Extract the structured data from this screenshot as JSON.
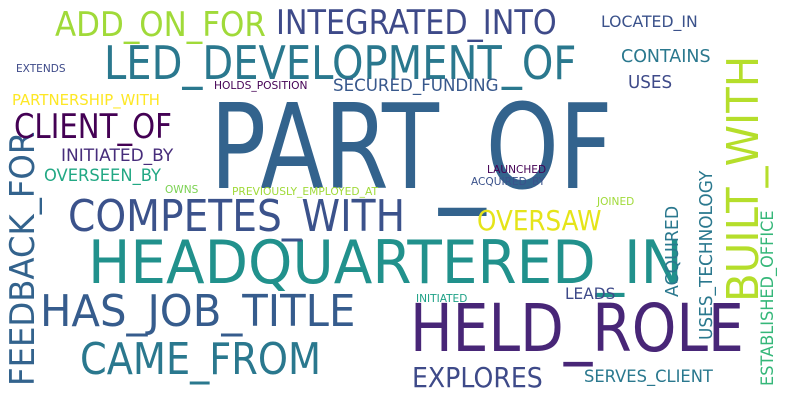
{
  "words": [
    {
      "text": "PART_OF",
      "color": "#33638d"
    },
    {
      "text": "HEADQUARTERED_IN",
      "color": "#21918c"
    },
    {
      "text": "LED_DEVELOPMENT_OF",
      "color": "#2a788e"
    },
    {
      "text": "HELD_ROLE",
      "color": "#482677"
    },
    {
      "text": "COMPETES_WITH",
      "color": "#3b528b"
    },
    {
      "text": "HAS_JOB_TITLE",
      "color": "#365c8d"
    },
    {
      "text": "CAME_FROM",
      "color": "#2a788e"
    },
    {
      "text": "INTEGRATED_INTO",
      "color": "#3e4a89"
    },
    {
      "text": "ADD_ON_FOR",
      "color": "#a0da39"
    },
    {
      "text": "BUILT_WITH",
      "color": "#b5de2b"
    },
    {
      "text": "FEEDBACK_FOR",
      "color": "#33638d"
    },
    {
      "text": "CLIENT_OF",
      "color": "#440154"
    },
    {
      "text": "OVERSAW",
      "color": "#e5e419"
    },
    {
      "text": "EXPLORES",
      "color": "#3e4a89"
    },
    {
      "text": "SECURED_FUNDING",
      "color": "#38588c"
    },
    {
      "text": "INITIATED_BY",
      "color": "#472d7b"
    },
    {
      "text": "OVERSEEN_BY",
      "color": "#22a884"
    },
    {
      "text": "PARTNERSHIP_WITH",
      "color": "#fde725"
    },
    {
      "text": "CONTAINS",
      "color": "#2a788e"
    },
    {
      "text": "LOCATED_IN",
      "color": "#3b528b"
    },
    {
      "text": "USES",
      "color": "#3e4a89"
    },
    {
      "text": "USES_TECHNOLOGY",
      "color": "#2a788e"
    },
    {
      "text": "ESTABLISHED_OFFICE",
      "color": "#35b779"
    },
    {
      "text": "ACQUIRED",
      "color": "#2a788e"
    },
    {
      "text": "SERVES_CLIENT",
      "color": "#2a788e"
    },
    {
      "text": "LEADS",
      "color": "#3e4a89"
    },
    {
      "text": "HOLDS_POSITION",
      "color": "#440154"
    },
    {
      "text": "EXTENDS",
      "color": "#3e4a89"
    },
    {
      "text": "LAUNCHED",
      "color": "#440154"
    },
    {
      "text": "ACQUIRED_BY",
      "color": "#3b528b"
    },
    {
      "text": "OWNS",
      "color": "#7ad151"
    },
    {
      "text": "PREVIOUSLY_EMPLOYED_AT",
      "color": "#a0da39"
    },
    {
      "text": "JOINED",
      "color": "#a0da39"
    },
    {
      "text": "INITIATED",
      "color": "#1fa187"
    }
  ]
}
